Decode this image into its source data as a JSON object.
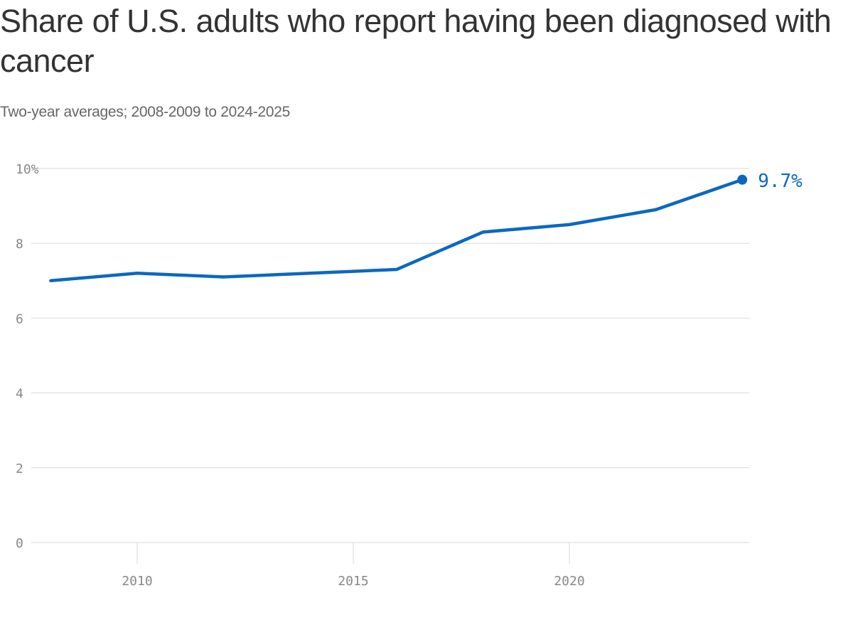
{
  "chart_data": {
    "type": "line",
    "title": "Share of U.S. adults who report having been diagnosed with cancer",
    "subtitle": "Two-year averages; 2008-2009 to 2024-2025",
    "xlabel": "",
    "ylabel": "",
    "x": [
      2008,
      2010,
      2012,
      2014,
      2016,
      2018,
      2020,
      2022,
      2024
    ],
    "series": [
      {
        "values": [
          7.0,
          7.2,
          7.1,
          7.2,
          7.3,
          8.3,
          8.5,
          8.9,
          9.7
        ],
        "color": "#0b68c1"
      }
    ],
    "xlim": [
      2008,
      2024
    ],
    "ylim": [
      0,
      10
    ],
    "x_ticks": [
      {
        "value": 2010,
        "label": "2010"
      },
      {
        "value": 2015,
        "label": "2015"
      },
      {
        "value": 2020,
        "label": "2020"
      }
    ],
    "y_ticks": [
      {
        "value": 0,
        "label": "0"
      },
      {
        "value": 2,
        "label": "2"
      },
      {
        "value": 4,
        "label": "4"
      },
      {
        "value": 6,
        "label": "6"
      },
      {
        "value": 8,
        "label": "8"
      },
      {
        "value": 10,
        "label": "10%"
      }
    ],
    "end_label": "9.7%",
    "grid": true,
    "legend": "none"
  }
}
